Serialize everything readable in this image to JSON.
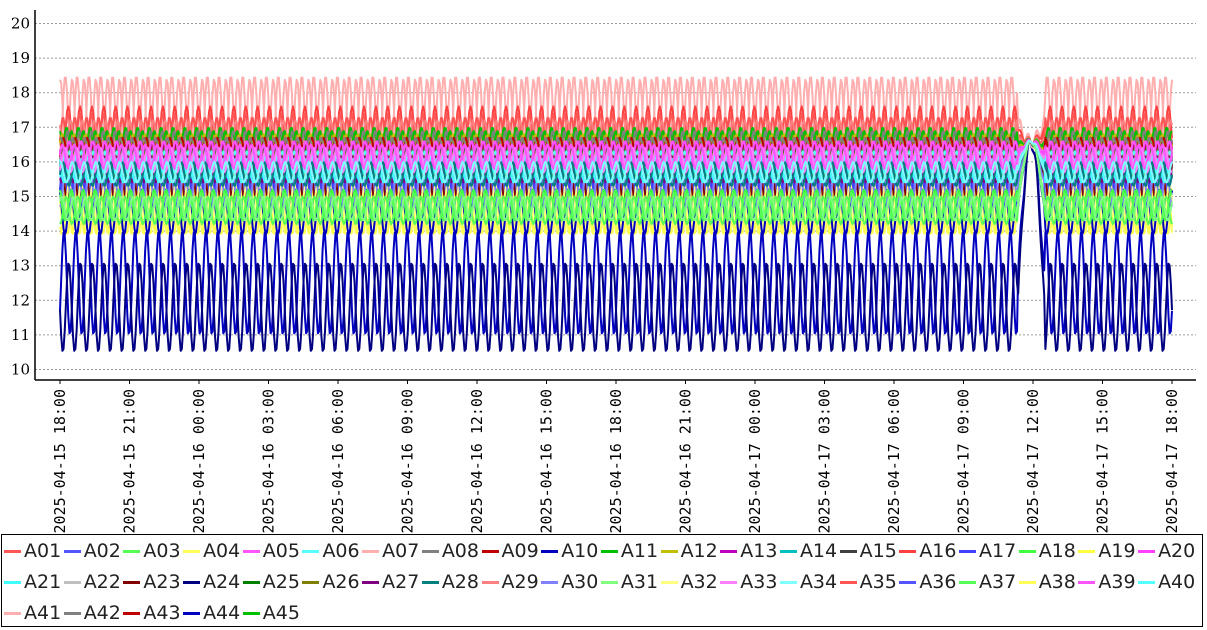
{
  "chart_data": {
    "type": "line",
    "title": "",
    "xlabel": "",
    "ylabel": "",
    "ylim": [
      10,
      20
    ],
    "yticks": [
      10,
      11,
      12,
      13,
      14,
      15,
      16,
      17,
      18,
      19,
      20
    ],
    "xlim": [
      "2025-04-15 18:00",
      "2025-04-17 18:00"
    ],
    "xticks": [
      "2025-04-15 18:00",
      "2025-04-15 21:00",
      "2025-04-16 00:00",
      "2025-04-16 03:00",
      "2025-04-16 06:00",
      "2025-04-16 09:00",
      "2025-04-16 12:00",
      "2025-04-16 15:00",
      "2025-04-16 18:00",
      "2025-04-16 21:00",
      "2025-04-17 00:00",
      "2025-04-17 03:00",
      "2025-04-17 06:00",
      "2025-04-17 09:00",
      "2025-04-17 12:00",
      "2025-04-17 15:00",
      "2025-04-17 18:00"
    ],
    "grid": "horizontal dotted",
    "legend_position": "bottom",
    "oscillation_cycles": 94,
    "event_window": [
      "2025-04-17 11:20",
      "2025-04-17 12:30"
    ],
    "series": [
      {
        "name": "A01",
        "color": "#ff5555",
        "low": 15.9,
        "high": 17.3
      },
      {
        "name": "A02",
        "color": "#5555ff",
        "low": 14.6,
        "high": 16.0
      },
      {
        "name": "A03",
        "color": "#55ff55",
        "low": 14.2,
        "high": 15.0
      },
      {
        "name": "A04",
        "color": "#ffff55",
        "low": 13.9,
        "high": 15.5
      },
      {
        "name": "A05",
        "color": "#ff55ff",
        "low": 15.9,
        "high": 16.6
      },
      {
        "name": "A06",
        "color": "#55ffff",
        "low": 15.5,
        "high": 16.2
      },
      {
        "name": "A07",
        "color": "#ffafaf",
        "low": 15.8,
        "high": 18.4
      },
      {
        "name": "A08",
        "color": "#808080",
        "low": 15.9,
        "high": 16.9
      },
      {
        "name": "A09",
        "color": "#c00000",
        "low": 15.8,
        "high": 16.7
      },
      {
        "name": "A10",
        "color": "#0000c0",
        "low": 13.9,
        "high": 15.2
      },
      {
        "name": "A11",
        "color": "#00c000",
        "low": 16.0,
        "high": 17.0
      },
      {
        "name": "A12",
        "color": "#c0c000",
        "low": 15.9,
        "high": 16.8
      },
      {
        "name": "A13",
        "color": "#c000c0",
        "low": 15.8,
        "high": 16.6
      },
      {
        "name": "A14",
        "color": "#00c0c0",
        "low": 15.6,
        "high": 16.4
      },
      {
        "name": "A15",
        "color": "#404040",
        "low": 15.7,
        "high": 16.6
      },
      {
        "name": "A16",
        "color": "#ff4040",
        "low": 16.2,
        "high": 17.6
      },
      {
        "name": "A17",
        "color": "#4040ff",
        "low": 14.8,
        "high": 16.2
      },
      {
        "name": "A18",
        "color": "#40ff40",
        "low": 14.4,
        "high": 15.2
      },
      {
        "name": "A19",
        "color": "#ffff40",
        "low": 14.0,
        "high": 15.6
      },
      {
        "name": "A20",
        "color": "#ff40ff",
        "low": 15.8,
        "high": 16.5
      },
      {
        "name": "A21",
        "color": "#40ffff",
        "low": 15.4,
        "high": 16.1
      },
      {
        "name": "A22",
        "color": "#c0c0c0",
        "low": 15.6,
        "high": 16.4
      },
      {
        "name": "A23",
        "color": "#800000",
        "low": 14.8,
        "high": 16.1
      },
      {
        "name": "A24",
        "color": "#000080",
        "low": 10.5,
        "high": 13.1
      },
      {
        "name": "A25",
        "color": "#008000",
        "low": 15.6,
        "high": 16.6
      },
      {
        "name": "A26",
        "color": "#808000",
        "low": 15.5,
        "high": 16.3
      },
      {
        "name": "A27",
        "color": "#800080",
        "low": 15.4,
        "high": 16.2
      },
      {
        "name": "A28",
        "color": "#008080",
        "low": 15.3,
        "high": 16.0
      },
      {
        "name": "A29",
        "color": "#ff8080",
        "low": 16.0,
        "high": 17.2
      },
      {
        "name": "A30",
        "color": "#8080ff",
        "low": 14.7,
        "high": 15.9
      },
      {
        "name": "A31",
        "color": "#80ff80",
        "low": 14.3,
        "high": 15.0
      },
      {
        "name": "A32",
        "color": "#ffff80",
        "low": 14.1,
        "high": 15.4
      },
      {
        "name": "A33",
        "color": "#ff80ff",
        "low": 15.7,
        "high": 16.4
      },
      {
        "name": "A34",
        "color": "#80ffff",
        "low": 15.4,
        "high": 16.0
      },
      {
        "name": "A35",
        "color": "#ff5555",
        "low": 16.0,
        "high": 17.4
      },
      {
        "name": "A36",
        "color": "#5555ff",
        "low": 14.7,
        "high": 16.1
      },
      {
        "name": "A37",
        "color": "#55ff55",
        "low": 14.3,
        "high": 15.1
      },
      {
        "name": "A38",
        "color": "#ffff55",
        "low": 13.9,
        "high": 15.5
      },
      {
        "name": "A39",
        "color": "#ff55ff",
        "low": 15.8,
        "high": 16.5
      },
      {
        "name": "A40",
        "color": "#55ffff",
        "low": 15.5,
        "high": 16.3
      },
      {
        "name": "A41",
        "color": "#ffafaf",
        "low": 15.9,
        "high": 18.5
      },
      {
        "name": "A42",
        "color": "#808080",
        "low": 15.8,
        "high": 16.7
      },
      {
        "name": "A43",
        "color": "#c00000",
        "low": 15.6,
        "high": 16.5
      },
      {
        "name": "A44",
        "color": "#0000c0",
        "low": 11.0,
        "high": 14.0
      },
      {
        "name": "A45",
        "color": "#00c000",
        "low": 15.9,
        "high": 16.9
      }
    ]
  }
}
